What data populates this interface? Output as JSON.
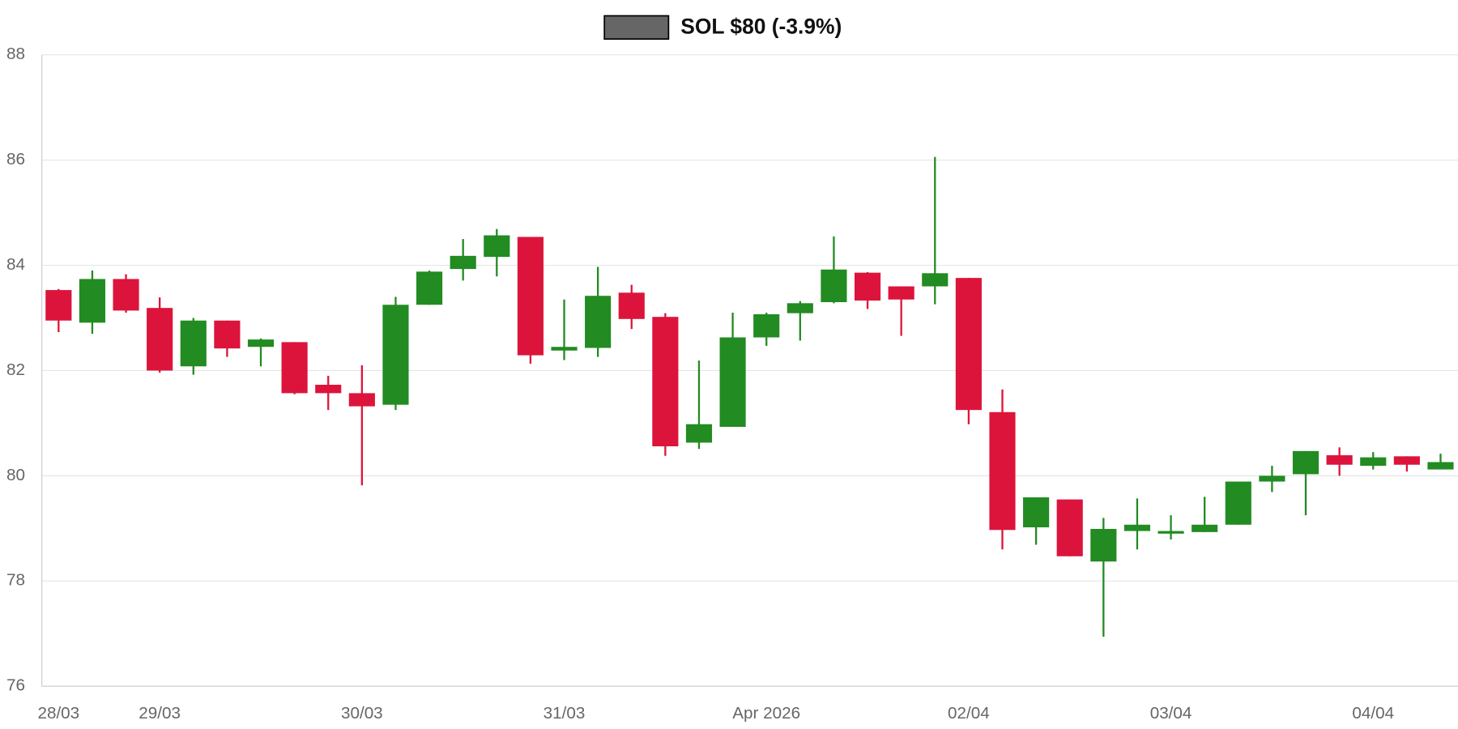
{
  "chart_data": {
    "type": "candlestick",
    "categories": [
      "28/03",
      null,
      null,
      "29/03",
      null,
      null,
      null,
      null,
      null,
      "30/03",
      null,
      null,
      null,
      null,
      null,
      "31/03",
      null,
      null,
      null,
      null,
      null,
      "Apr 2026",
      null,
      null,
      null,
      null,
      null,
      "02/04",
      null,
      null,
      null,
      null,
      null,
      "03/04",
      null,
      null,
      null,
      null,
      null,
      "04/04",
      null,
      null
    ],
    "series": [
      {
        "name": "SOL $80 (-3.9%)",
        "color": "#666666",
        "up_color": "#228b22",
        "down_color": "#dc143c",
        "open": [
          83.53,
          82.91,
          83.74,
          83.19,
          82.08,
          82.95,
          82.45,
          82.54,
          81.73,
          81.57,
          81.35,
          83.25,
          83.93,
          84.16,
          84.54,
          82.38,
          82.43,
          83.48,
          83.02,
          80.63,
          80.93,
          82.63,
          83.09,
          83.3,
          83.86,
          83.6,
          83.6,
          83.76,
          81.21,
          79.02,
          79.55,
          78.37,
          78.95,
          78.9,
          78.93,
          79.07,
          79.89,
          80.03,
          80.39,
          80.19,
          80.37,
          80.12
        ],
        "high": [
          83.55,
          83.9,
          83.83,
          83.39,
          83.0,
          82.95,
          82.61,
          82.54,
          81.9,
          82.1,
          83.4,
          83.9,
          84.5,
          84.69,
          84.54,
          83.35,
          83.97,
          83.63,
          83.09,
          82.19,
          83.1,
          83.1,
          83.32,
          84.55,
          83.87,
          83.6,
          86.06,
          83.76,
          81.64,
          79.59,
          79.55,
          79.2,
          79.57,
          79.25,
          79.6,
          79.89,
          80.19,
          80.47,
          80.54,
          80.45,
          80.37,
          80.42
        ],
        "low": [
          82.73,
          82.7,
          83.1,
          81.96,
          81.92,
          82.26,
          82.08,
          81.55,
          81.25,
          79.82,
          81.25,
          83.25,
          83.71,
          83.79,
          82.13,
          82.2,
          82.26,
          82.79,
          80.38,
          80.51,
          80.93,
          82.47,
          82.57,
          83.28,
          83.17,
          82.66,
          83.26,
          80.98,
          78.6,
          78.69,
          78.47,
          76.94,
          78.6,
          78.79,
          78.93,
          79.07,
          79.69,
          79.25,
          80.0,
          80.12,
          80.08,
          80.15
        ],
        "close": [
          82.95,
          83.74,
          83.14,
          82.0,
          82.95,
          82.42,
          82.59,
          81.57,
          81.57,
          81.32,
          83.25,
          83.88,
          84.18,
          84.57,
          82.29,
          82.45,
          83.42,
          82.98,
          80.56,
          80.98,
          82.63,
          83.07,
          83.28,
          83.92,
          83.33,
          83.35,
          83.85,
          81.25,
          78.97,
          79.59,
          78.47,
          78.99,
          79.07,
          78.95,
          79.07,
          79.89,
          80.0,
          80.47,
          80.21,
          80.35,
          80.21,
          80.26
        ]
      }
    ],
    "ylim": [
      76,
      88
    ],
    "yticks": [
      76,
      78,
      80,
      82,
      84,
      86,
      88
    ],
    "grid": true
  }
}
